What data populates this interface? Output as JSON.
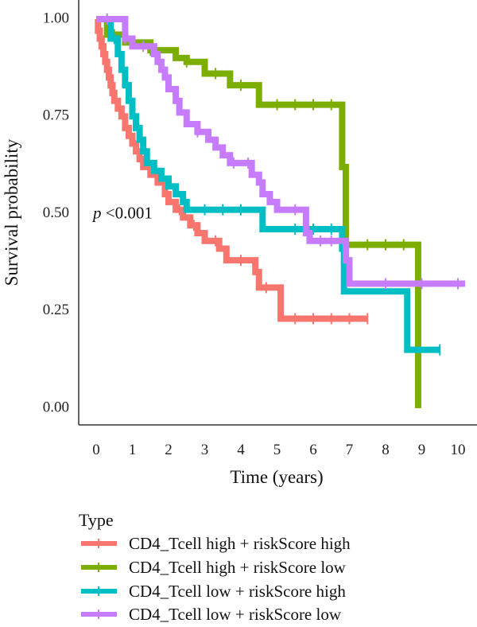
{
  "chart_data": {
    "type": "line",
    "xlabel": "Time (years)",
    "ylabel": "Survival probability",
    "xlim": [
      0,
      10
    ],
    "ylim": [
      0,
      1
    ],
    "x_ticks": [
      0,
      1,
      2,
      3,
      4,
      5,
      6,
      7,
      8,
      9,
      10
    ],
    "y_ticks": [
      0,
      0.25,
      0.5,
      0.75,
      1.0
    ],
    "y_tick_labels": [
      "0.00",
      "0.25",
      "0.50",
      "0.75",
      "1.00"
    ],
    "grid": false,
    "legend_title": "Type",
    "legend_position": "bottom",
    "annotation": {
      "p_symbol": "p",
      "p_text": "<0.001",
      "x": 0,
      "y": 0.5
    },
    "series": [
      {
        "name": "CD4_Tcell high + riskScore high",
        "color": "#F8766D",
        "censor_times": [
          2.3,
          2.7,
          3.3,
          4.0,
          4.7,
          5.5,
          6.0,
          6.5,
          7.0,
          7.5
        ],
        "points": [
          [
            0,
            1.0
          ],
          [
            0.05,
            0.97
          ],
          [
            0.1,
            0.95
          ],
          [
            0.15,
            0.93
          ],
          [
            0.2,
            0.91
          ],
          [
            0.25,
            0.89
          ],
          [
            0.3,
            0.87
          ],
          [
            0.35,
            0.85
          ],
          [
            0.4,
            0.83
          ],
          [
            0.45,
            0.81
          ],
          [
            0.5,
            0.79
          ],
          [
            0.6,
            0.77
          ],
          [
            0.7,
            0.75
          ],
          [
            0.8,
            0.72
          ],
          [
            0.9,
            0.7
          ],
          [
            1.0,
            0.68
          ],
          [
            1.1,
            0.66
          ],
          [
            1.2,
            0.64
          ],
          [
            1.3,
            0.62
          ],
          [
            1.5,
            0.6
          ],
          [
            1.7,
            0.58
          ],
          [
            1.9,
            0.55
          ],
          [
            2.0,
            0.53
          ],
          [
            2.2,
            0.51
          ],
          [
            2.4,
            0.49
          ],
          [
            2.6,
            0.47
          ],
          [
            2.8,
            0.45
          ],
          [
            3.0,
            0.43
          ],
          [
            3.4,
            0.41
          ],
          [
            3.6,
            0.38
          ],
          [
            4.4,
            0.35
          ],
          [
            4.5,
            0.31
          ],
          [
            5.1,
            0.23
          ],
          [
            7.5,
            0.23
          ]
        ]
      },
      {
        "name": "CD4_Tcell high + riskScore low",
        "color": "#7CAE00",
        "censor_times": [
          0.5,
          1.0,
          1.5,
          2.5,
          3.3,
          4.0,
          5.0,
          5.5,
          6.0,
          6.5,
          7.5,
          8.0,
          8.5
        ],
        "points": [
          [
            0,
            1.0
          ],
          [
            0.3,
            0.96
          ],
          [
            0.8,
            0.94
          ],
          [
            1.5,
            0.92
          ],
          [
            2.2,
            0.9
          ],
          [
            2.5,
            0.89
          ],
          [
            3.0,
            0.86
          ],
          [
            3.7,
            0.83
          ],
          [
            4.5,
            0.78
          ],
          [
            6.8,
            0.62
          ],
          [
            6.9,
            0.42
          ],
          [
            8.9,
            0.0
          ]
        ]
      },
      {
        "name": "CD4_Tcell low + riskScore high",
        "color": "#00BFC4",
        "censor_times": [
          0.3,
          0.5,
          3.0,
          3.5,
          4.0,
          5.5,
          6.0,
          6.5,
          9.5
        ],
        "points": [
          [
            0,
            1.0
          ],
          [
            0.4,
            0.95
          ],
          [
            0.6,
            0.91
          ],
          [
            0.7,
            0.87
          ],
          [
            0.8,
            0.83
          ],
          [
            0.9,
            0.79
          ],
          [
            1.0,
            0.75
          ],
          [
            1.1,
            0.72
          ],
          [
            1.2,
            0.69
          ],
          [
            1.3,
            0.66
          ],
          [
            1.4,
            0.63
          ],
          [
            1.6,
            0.61
          ],
          [
            1.8,
            0.59
          ],
          [
            2.0,
            0.57
          ],
          [
            2.2,
            0.55
          ],
          [
            2.4,
            0.53
          ],
          [
            2.5,
            0.51
          ],
          [
            4.6,
            0.46
          ],
          [
            6.8,
            0.41
          ],
          [
            6.85,
            0.3
          ],
          [
            8.6,
            0.15
          ],
          [
            9.5,
            0.15
          ]
        ]
      },
      {
        "name": "CD4_Tcell low + riskScore low",
        "color": "#C77CFF",
        "censor_times": [
          0.3,
          0.8,
          1.3,
          2.8,
          3.8,
          4.2,
          5.5,
          6.2,
          6.5,
          8.0,
          9.0,
          10.0
        ],
        "points": [
          [
            0,
            1.0
          ],
          [
            0.8,
            0.95
          ],
          [
            1.0,
            0.93
          ],
          [
            1.6,
            0.91
          ],
          [
            1.7,
            0.89
          ],
          [
            1.8,
            0.87
          ],
          [
            1.9,
            0.85
          ],
          [
            2.0,
            0.82
          ],
          [
            2.2,
            0.79
          ],
          [
            2.3,
            0.76
          ],
          [
            2.5,
            0.73
          ],
          [
            2.8,
            0.71
          ],
          [
            3.1,
            0.69
          ],
          [
            3.3,
            0.67
          ],
          [
            3.5,
            0.65
          ],
          [
            3.7,
            0.63
          ],
          [
            4.3,
            0.6
          ],
          [
            4.5,
            0.58
          ],
          [
            4.6,
            0.55
          ],
          [
            4.8,
            0.53
          ],
          [
            5.0,
            0.51
          ],
          [
            5.8,
            0.45
          ],
          [
            5.9,
            0.43
          ],
          [
            6.9,
            0.38
          ],
          [
            7.0,
            0.32
          ],
          [
            10.2,
            0.32
          ]
        ]
      }
    ]
  }
}
